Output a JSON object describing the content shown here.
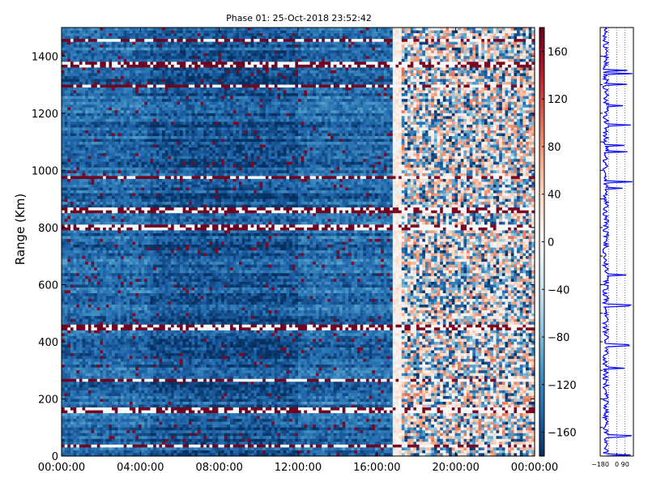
{
  "chart_data": [
    {
      "type": "heatmap",
      "title": "Phase 01: 25-Oct-2018 23:52:42",
      "xlabel": "",
      "ylabel": "Range (Km)",
      "x_tick_labels": [
        "00:00:00",
        "04:00:00",
        "08:00:00",
        "12:00:00",
        "16:00:00",
        "20:00:00",
        "00:00:00"
      ],
      "x_ticks_hours": [
        0,
        4,
        8,
        12,
        16,
        20,
        24
      ],
      "xlim_hours": [
        0,
        24
      ],
      "y_ticks": [
        0,
        200,
        400,
        600,
        800,
        1000,
        1200,
        1400
      ],
      "ylim": [
        0,
        1500
      ],
      "colorscale": "RdBu_r",
      "colorbar": {
        "ticks": [
          160,
          120,
          80,
          40,
          0,
          -40,
          -80,
          -120,
          -160
        ],
        "tick_labels": [
          "160",
          "120",
          "80",
          "40",
          "0",
          "−40",
          "−80",
          "−120",
          "−160"
        ],
        "range": [
          -180,
          180
        ]
      },
      "regions": [
        {
          "from_hour": 0,
          "to_hour": 16.8,
          "typical_phase": -120
        },
        {
          "from_hour": 16.8,
          "to_hour": 24,
          "typical_phase": 40
        }
      ],
      "notable_range_bands_km": [
        35,
        160,
        265,
        450,
        800,
        860,
        975,
        1295,
        1370,
        1455
      ],
      "grid": false
    },
    {
      "type": "line",
      "x_tick_labels": [
        "−180",
        "0",
        "90"
      ],
      "x_ticks": [
        -180,
        0,
        90
      ],
      "xlim": [
        -180,
        180
      ],
      "ylim": [
        0,
        1500
      ],
      "typical_value": -120,
      "grid": true,
      "color": "#0000ff"
    }
  ]
}
